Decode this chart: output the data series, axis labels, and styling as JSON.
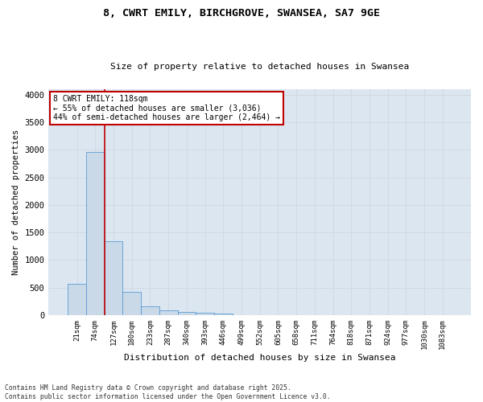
{
  "title1": "8, CWRT EMILY, BIRCHGROVE, SWANSEA, SA7 9GE",
  "title2": "Size of property relative to detached houses in Swansea",
  "xlabel": "Distribution of detached houses by size in Swansea",
  "ylabel": "Number of detached properties",
  "categories": [
    "21sqm",
    "74sqm",
    "127sqm",
    "180sqm",
    "233sqm",
    "287sqm",
    "340sqm",
    "393sqm",
    "446sqm",
    "499sqm",
    "552sqm",
    "605sqm",
    "658sqm",
    "711sqm",
    "764sqm",
    "818sqm",
    "871sqm",
    "924sqm",
    "977sqm",
    "1030sqm",
    "1083sqm"
  ],
  "values": [
    570,
    2960,
    1340,
    420,
    160,
    90,
    60,
    40,
    30,
    5,
    3,
    2,
    1,
    1,
    1,
    0,
    0,
    0,
    0,
    0,
    0
  ],
  "bar_color": "#c9d9e8",
  "bar_edge_color": "#5b9bd5",
  "grid_color": "#d0d8e4",
  "background_color": "#dce6f0",
  "fig_background": "#ffffff",
  "vline_color": "#c00000",
  "vline_x_index": 1.5,
  "annotation_text": "8 CWRT EMILY: 118sqm\n← 55% of detached houses are smaller (3,036)\n44% of semi-detached houses are larger (2,464) →",
  "annotation_box_color": "#c00000",
  "footer_line1": "Contains HM Land Registry data © Crown copyright and database right 2025.",
  "footer_line2": "Contains public sector information licensed under the Open Government Licence v3.0.",
  "ylim": [
    0,
    4100
  ],
  "yticks": [
    0,
    500,
    1000,
    1500,
    2000,
    2500,
    3000,
    3500,
    4000
  ]
}
